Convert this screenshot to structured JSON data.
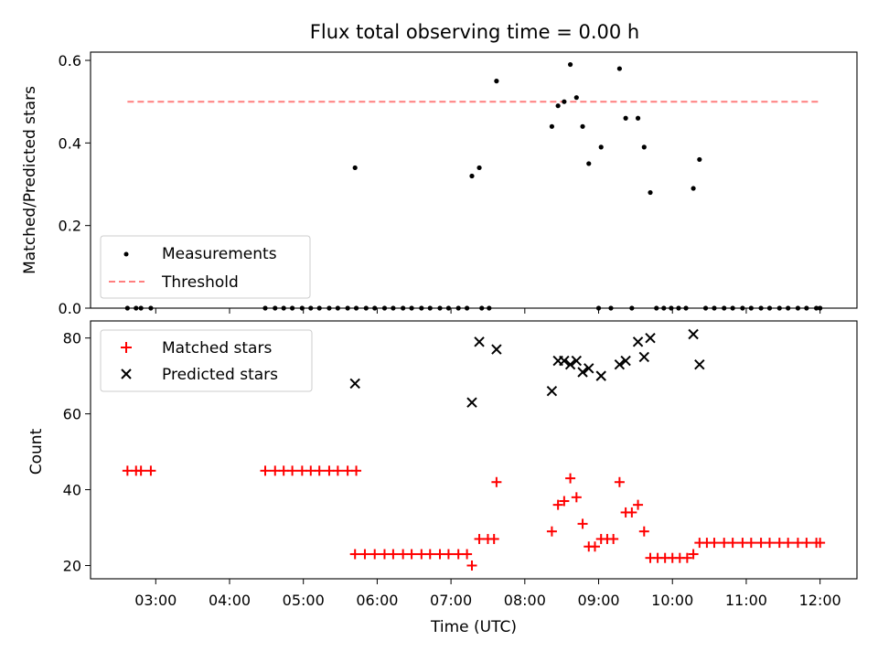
{
  "chart_data": [
    {
      "type": "scatter",
      "title": "Flux total observing time = 0.00 h",
      "xlabel": "",
      "ylabel": "Matched/Predicted stars",
      "ylim": [
        0,
        0.62
      ],
      "yticks": [
        "0.0",
        "0.2",
        "0.4",
        "0.6"
      ],
      "legend": {
        "placement": "lower-left",
        "entries": [
          "Measurements",
          "Threshold"
        ]
      },
      "threshold": {
        "name": "Threshold",
        "value": 0.5,
        "x_range": [
          "02:37",
          "12:00"
        ],
        "color": "#ff7f7f"
      },
      "series": [
        {
          "name": "Measurements",
          "color": "#000000",
          "points": [
            [
              "02:37",
              0.0
            ],
            [
              "02:44",
              0.0
            ],
            [
              "02:48",
              0.0
            ],
            [
              "02:56",
              0.0
            ],
            [
              "04:29",
              0.0
            ],
            [
              "04:37",
              0.0
            ],
            [
              "04:44",
              0.0
            ],
            [
              "04:51",
              0.0
            ],
            [
              "04:59",
              0.0
            ],
            [
              "05:06",
              0.0
            ],
            [
              "05:13",
              0.0
            ],
            [
              "05:21",
              0.0
            ],
            [
              "05:28",
              0.0
            ],
            [
              "05:36",
              0.0
            ],
            [
              "05:43",
              0.0
            ],
            [
              "05:51",
              0.0
            ],
            [
              "05:42",
              0.34
            ],
            [
              "05:58",
              0.0
            ],
            [
              "06:06",
              0.0
            ],
            [
              "06:13",
              0.0
            ],
            [
              "06:21",
              0.0
            ],
            [
              "06:28",
              0.0
            ],
            [
              "06:36",
              0.0
            ],
            [
              "06:43",
              0.0
            ],
            [
              "06:51",
              0.0
            ],
            [
              "06:58",
              0.0
            ],
            [
              "07:06",
              0.0
            ],
            [
              "07:13",
              0.0
            ],
            [
              "07:17",
              0.32
            ],
            [
              "07:23",
              0.34
            ],
            [
              "07:37",
              0.55
            ],
            [
              "07:25",
              0.0
            ],
            [
              "07:31",
              0.0
            ],
            [
              "08:22",
              0.44
            ],
            [
              "08:27",
              0.49
            ],
            [
              "08:32",
              0.5
            ],
            [
              "08:37",
              0.59
            ],
            [
              "08:42",
              0.51
            ],
            [
              "08:47",
              0.44
            ],
            [
              "08:52",
              0.35
            ],
            [
              "09:02",
              0.39
            ],
            [
              "09:17",
              0.58
            ],
            [
              "09:22",
              0.46
            ],
            [
              "09:32",
              0.46
            ],
            [
              "09:37",
              0.39
            ],
            [
              "09:42",
              0.28
            ],
            [
              "09:00",
              0.0
            ],
            [
              "09:10",
              0.0
            ],
            [
              "09:27",
              0.0
            ],
            [
              "09:47",
              0.0
            ],
            [
              "09:53",
              0.0
            ],
            [
              "09:59",
              0.0
            ],
            [
              "10:05",
              0.0
            ],
            [
              "10:11",
              0.0
            ],
            [
              "10:17",
              0.29
            ],
            [
              "10:22",
              0.36
            ],
            [
              "10:27",
              0.0
            ],
            [
              "10:34",
              0.0
            ],
            [
              "10:42",
              0.0
            ],
            [
              "10:49",
              0.0
            ],
            [
              "10:57",
              0.0
            ],
            [
              "11:04",
              0.0
            ],
            [
              "11:12",
              0.0
            ],
            [
              "11:19",
              0.0
            ],
            [
              "11:27",
              0.0
            ],
            [
              "11:34",
              0.0
            ],
            [
              "11:42",
              0.0
            ],
            [
              "11:49",
              0.0
            ],
            [
              "11:57",
              0.0
            ],
            [
              "12:00",
              0.0
            ]
          ]
        }
      ]
    },
    {
      "type": "scatter",
      "title": "",
      "xlabel": "Time (UTC)",
      "ylabel": "Count",
      "ylim": [
        16.5,
        84.5
      ],
      "yticks": [
        "20",
        "40",
        "60",
        "80"
      ],
      "xticks": [
        "03:00",
        "04:00",
        "05:00",
        "06:00",
        "07:00",
        "08:00",
        "09:00",
        "10:00",
        "11:00",
        "12:00"
      ],
      "x_range": [
        "02:07",
        "12:30"
      ],
      "legend": {
        "placement": "upper-left",
        "entries": [
          "Matched stars",
          "Predicted stars"
        ]
      },
      "series": [
        {
          "name": "Matched stars",
          "marker": "plus",
          "color": "#ff0000",
          "points": [
            [
              "02:37",
              45
            ],
            [
              "02:44",
              45
            ],
            [
              "02:48",
              45
            ],
            [
              "02:56",
              45
            ],
            [
              "04:29",
              45
            ],
            [
              "04:37",
              45
            ],
            [
              "04:44",
              45
            ],
            [
              "04:51",
              45
            ],
            [
              "04:59",
              45
            ],
            [
              "05:06",
              45
            ],
            [
              "05:13",
              45
            ],
            [
              "05:21",
              45
            ],
            [
              "05:28",
              45
            ],
            [
              "05:36",
              45
            ],
            [
              "05:43",
              45
            ],
            [
              "05:42",
              23
            ],
            [
              "05:50",
              23
            ],
            [
              "05:58",
              23
            ],
            [
              "06:06",
              23
            ],
            [
              "06:13",
              23
            ],
            [
              "06:21",
              23
            ],
            [
              "06:28",
              23
            ],
            [
              "06:36",
              23
            ],
            [
              "06:43",
              23
            ],
            [
              "06:51",
              23
            ],
            [
              "06:58",
              23
            ],
            [
              "07:06",
              23
            ],
            [
              "07:13",
              23
            ],
            [
              "07:17",
              20
            ],
            [
              "07:23",
              27
            ],
            [
              "07:30",
              27
            ],
            [
              "07:37",
              42
            ],
            [
              "07:35",
              27
            ],
            [
              "08:22",
              29
            ],
            [
              "08:27",
              36
            ],
            [
              "08:32",
              37
            ],
            [
              "08:37",
              43
            ],
            [
              "08:42",
              38
            ],
            [
              "08:47",
              31
            ],
            [
              "08:52",
              25
            ],
            [
              "08:57",
              25
            ],
            [
              "09:02",
              27
            ],
            [
              "09:07",
              27
            ],
            [
              "09:12",
              27
            ],
            [
              "09:17",
              42
            ],
            [
              "09:22",
              34
            ],
            [
              "09:27",
              34
            ],
            [
              "09:32",
              36
            ],
            [
              "09:37",
              29
            ],
            [
              "09:42",
              22
            ],
            [
              "09:48",
              22
            ],
            [
              "09:54",
              22
            ],
            [
              "10:00",
              22
            ],
            [
              "10:06",
              22
            ],
            [
              "10:12",
              22
            ],
            [
              "10:17",
              23
            ],
            [
              "10:22",
              26
            ],
            [
              "10:28",
              26
            ],
            [
              "10:34",
              26
            ],
            [
              "10:42",
              26
            ],
            [
              "10:49",
              26
            ],
            [
              "10:57",
              26
            ],
            [
              "11:04",
              26
            ],
            [
              "11:12",
              26
            ],
            [
              "11:19",
              26
            ],
            [
              "11:27",
              26
            ],
            [
              "11:34",
              26
            ],
            [
              "11:42",
              26
            ],
            [
              "11:49",
              26
            ],
            [
              "11:57",
              26
            ],
            [
              "12:00",
              26
            ]
          ]
        },
        {
          "name": "Predicted stars",
          "marker": "x",
          "color": "#000000",
          "points": [
            [
              "05:42",
              68
            ],
            [
              "07:17",
              63
            ],
            [
              "07:23",
              79
            ],
            [
              "07:37",
              77
            ],
            [
              "08:22",
              66
            ],
            [
              "08:27",
              74
            ],
            [
              "08:32",
              74
            ],
            [
              "08:37",
              73
            ],
            [
              "08:42",
              74
            ],
            [
              "08:47",
              71
            ],
            [
              "08:52",
              72
            ],
            [
              "09:02",
              70
            ],
            [
              "09:17",
              73
            ],
            [
              "09:22",
              74
            ],
            [
              "09:32",
              79
            ],
            [
              "09:37",
              75
            ],
            [
              "09:42",
              80
            ],
            [
              "10:17",
              81
            ],
            [
              "10:22",
              73
            ]
          ]
        }
      ]
    }
  ]
}
